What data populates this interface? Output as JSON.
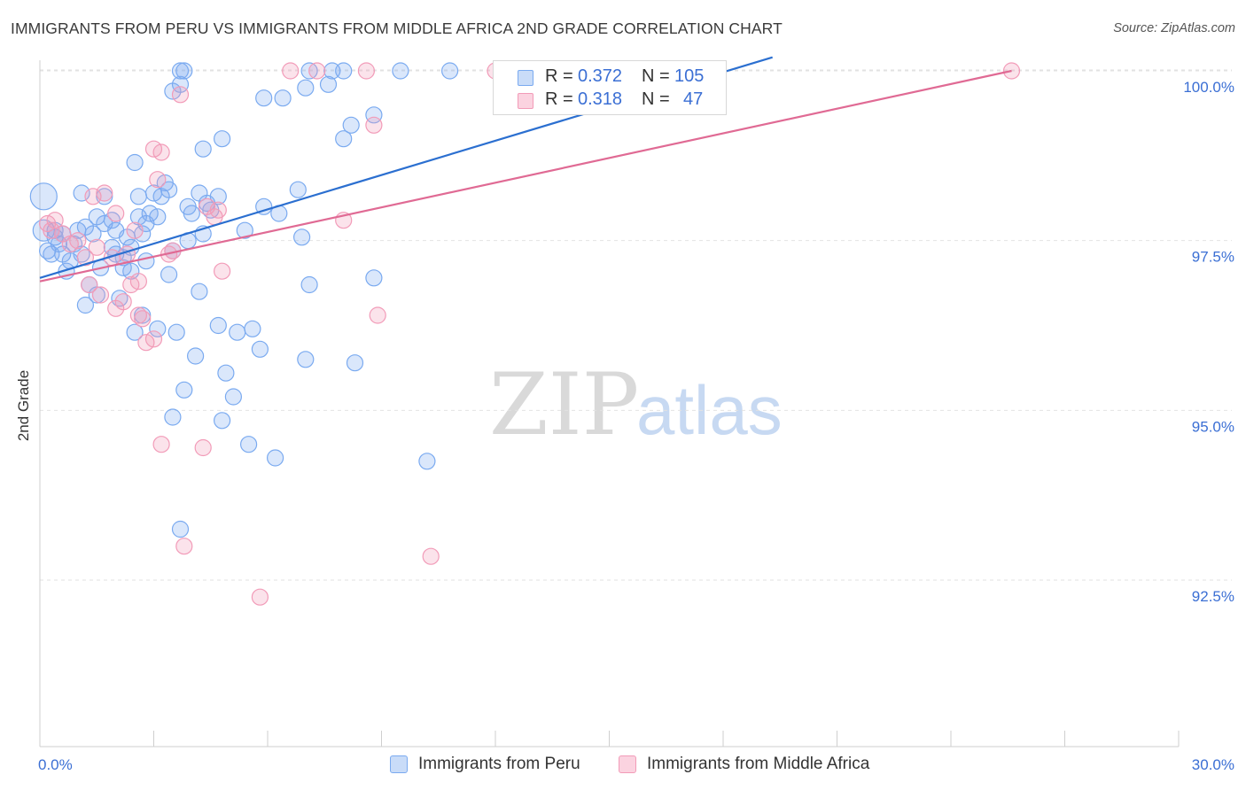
{
  "header": {
    "title": "IMMIGRANTS FROM PERU VS IMMIGRANTS FROM MIDDLE AFRICA 2ND GRADE CORRELATION CHART",
    "source": "Source: ZipAtlas.com"
  },
  "watermark": {
    "zip": "ZIP",
    "atlas": "atlas"
  },
  "stats_legend": {
    "rows": [
      {
        "r_label": "R =",
        "r_value": "0.372",
        "n_label": "N =",
        "n_value": "105",
        "color": "#7aaaf0"
      },
      {
        "r_label": "R =",
        "r_value": "0.318",
        "n_label": "N =",
        "n_value": "47",
        "color": "#f29bb8"
      }
    ]
  },
  "bottom_legend": {
    "items": [
      {
        "label": "Immigrants from Peru",
        "color": "#7aaaf0"
      },
      {
        "label": "Immigrants from Middle Africa",
        "color": "#f29bb8"
      }
    ]
  },
  "chart_data": {
    "type": "scatter",
    "title": "IMMIGRANTS FROM PERU VS IMMIGRANTS FROM MIDDLE AFRICA 2ND GRADE CORRELATION CHART",
    "xlabel": "",
    "ylabel": "2nd Grade",
    "xlim": [
      0,
      30
    ],
    "ylim": [
      90.2,
      100.2
    ],
    "x_tick_labels": [
      "0.0%",
      "30.0%"
    ],
    "y_ticks": [
      92.5,
      95.0,
      97.5,
      100.0
    ],
    "y_tick_labels": [
      "92.5%",
      "95.0%",
      "97.5%",
      "100.0%"
    ],
    "grid": true,
    "legend_position": "bottom",
    "series": [
      {
        "name": "Immigrants from Peru",
        "color": "#7aaaf0",
        "line_color": "#2b6fd0",
        "trend": {
          "x": [
            0,
            19.3
          ],
          "y": [
            96.95,
            100.2
          ]
        },
        "points": [
          [
            0.1,
            98.15
          ],
          [
            0.1,
            97.65
          ],
          [
            0.2,
            97.35
          ],
          [
            0.3,
            97.3
          ],
          [
            0.4,
            97.55
          ],
          [
            0.5,
            97.45
          ],
          [
            0.6,
            97.3
          ],
          [
            0.7,
            97.05
          ],
          [
            0.8,
            97.2
          ],
          [
            1.0,
            97.65
          ],
          [
            1.1,
            98.2
          ],
          [
            1.2,
            96.55
          ],
          [
            1.3,
            96.85
          ],
          [
            1.4,
            97.6
          ],
          [
            1.5,
            96.7
          ],
          [
            1.6,
            97.1
          ],
          [
            1.7,
            97.75
          ],
          [
            1.7,
            98.15
          ],
          [
            1.9,
            97.4
          ],
          [
            2.0,
            97.3
          ],
          [
            2.1,
            96.65
          ],
          [
            2.2,
            97.25
          ],
          [
            2.3,
            97.55
          ],
          [
            2.4,
            97.4
          ],
          [
            2.4,
            97.05
          ],
          [
            2.5,
            96.15
          ],
          [
            2.5,
            98.65
          ],
          [
            2.6,
            97.85
          ],
          [
            2.6,
            98.15
          ],
          [
            2.7,
            96.4
          ],
          [
            2.8,
            97.75
          ],
          [
            2.9,
            97.9
          ],
          [
            3.0,
            98.2
          ],
          [
            3.1,
            97.85
          ],
          [
            3.1,
            96.2
          ],
          [
            3.2,
            98.15
          ],
          [
            3.3,
            98.35
          ],
          [
            3.4,
            97.0
          ],
          [
            3.5,
            97.35
          ],
          [
            3.5,
            94.9
          ],
          [
            3.5,
            99.7
          ],
          [
            3.6,
            96.15
          ],
          [
            3.7,
            93.25
          ],
          [
            3.7,
            99.8
          ],
          [
            3.7,
            100.0
          ],
          [
            3.8,
            100.0
          ],
          [
            3.8,
            95.3
          ],
          [
            3.9,
            97.5
          ],
          [
            4.0,
            97.9
          ],
          [
            4.1,
            95.8
          ],
          [
            4.2,
            98.2
          ],
          [
            4.2,
            96.75
          ],
          [
            4.3,
            98.85
          ],
          [
            4.3,
            97.6
          ],
          [
            4.4,
            98.05
          ],
          [
            4.5,
            97.95
          ],
          [
            4.7,
            98.15
          ],
          [
            4.7,
            96.25
          ],
          [
            4.8,
            94.85
          ],
          [
            4.8,
            99.0
          ],
          [
            4.9,
            95.55
          ],
          [
            5.1,
            95.2
          ],
          [
            5.2,
            96.15
          ],
          [
            5.4,
            97.65
          ],
          [
            5.5,
            94.5
          ],
          [
            5.6,
            96.2
          ],
          [
            5.8,
            95.9
          ],
          [
            5.9,
            99.6
          ],
          [
            5.9,
            98.0
          ],
          [
            6.2,
            94.3
          ],
          [
            6.3,
            97.9
          ],
          [
            6.4,
            99.6
          ],
          [
            6.8,
            98.25
          ],
          [
            6.9,
            97.55
          ],
          [
            7.0,
            99.75
          ],
          [
            7.0,
            95.75
          ],
          [
            7.1,
            100.0
          ],
          [
            7.1,
            96.85
          ],
          [
            7.6,
            99.8
          ],
          [
            7.7,
            100.0
          ],
          [
            8.0,
            100.0
          ],
          [
            8.0,
            99.0
          ],
          [
            8.2,
            99.2
          ],
          [
            8.3,
            95.7
          ],
          [
            8.8,
            99.35
          ],
          [
            8.8,
            96.95
          ],
          [
            9.5,
            100.0
          ],
          [
            10.2,
            94.25
          ],
          [
            10.8,
            100.0
          ],
          [
            12.2,
            100.0
          ],
          [
            13.0,
            100.0
          ],
          [
            16.3,
            100.0
          ],
          [
            1.5,
            97.85
          ],
          [
            2.8,
            97.2
          ],
          [
            3.4,
            98.25
          ],
          [
            0.9,
            97.45
          ],
          [
            1.2,
            97.7
          ],
          [
            2.2,
            97.1
          ],
          [
            1.9,
            97.8
          ],
          [
            2.7,
            97.6
          ],
          [
            3.9,
            98.0
          ],
          [
            0.6,
            97.6
          ],
          [
            1.1,
            97.3
          ],
          [
            2.0,
            97.65
          ],
          [
            0.4,
            97.65
          ]
        ]
      },
      {
        "name": "Immigrants from Middle Africa",
        "color": "#f29bb8",
        "line_color": "#e06a94",
        "trend": {
          "x": [
            0,
            25.6
          ],
          "y": [
            96.9,
            100.0
          ]
        },
        "points": [
          [
            0.2,
            97.75
          ],
          [
            0.3,
            97.65
          ],
          [
            0.4,
            97.8
          ],
          [
            0.6,
            97.6
          ],
          [
            0.8,
            97.45
          ],
          [
            1.0,
            97.5
          ],
          [
            1.2,
            97.25
          ],
          [
            1.3,
            96.85
          ],
          [
            1.4,
            98.15
          ],
          [
            1.5,
            97.4
          ],
          [
            1.6,
            96.7
          ],
          [
            1.7,
            98.2
          ],
          [
            1.9,
            97.25
          ],
          [
            2.0,
            96.5
          ],
          [
            2.0,
            97.9
          ],
          [
            2.2,
            96.6
          ],
          [
            2.3,
            97.3
          ],
          [
            2.4,
            96.85
          ],
          [
            2.5,
            97.65
          ],
          [
            2.6,
            96.9
          ],
          [
            2.6,
            96.4
          ],
          [
            2.7,
            96.35
          ],
          [
            2.8,
            96.0
          ],
          [
            3.0,
            96.05
          ],
          [
            3.0,
            98.85
          ],
          [
            3.1,
            98.4
          ],
          [
            3.2,
            94.5
          ],
          [
            3.2,
            98.8
          ],
          [
            3.4,
            97.3
          ],
          [
            3.5,
            97.35
          ],
          [
            3.7,
            99.65
          ],
          [
            3.8,
            93.0
          ],
          [
            4.3,
            94.45
          ],
          [
            4.4,
            98.0
          ],
          [
            4.6,
            97.85
          ],
          [
            4.7,
            97.95
          ],
          [
            4.8,
            97.05
          ],
          [
            5.8,
            92.25
          ],
          [
            6.6,
            100.0
          ],
          [
            7.3,
            100.0
          ],
          [
            8.0,
            97.8
          ],
          [
            8.6,
            100.0
          ],
          [
            8.8,
            99.2
          ],
          [
            8.9,
            96.4
          ],
          [
            10.3,
            92.85
          ],
          [
            12.0,
            100.0
          ],
          [
            25.6,
            100.0
          ]
        ]
      }
    ]
  }
}
